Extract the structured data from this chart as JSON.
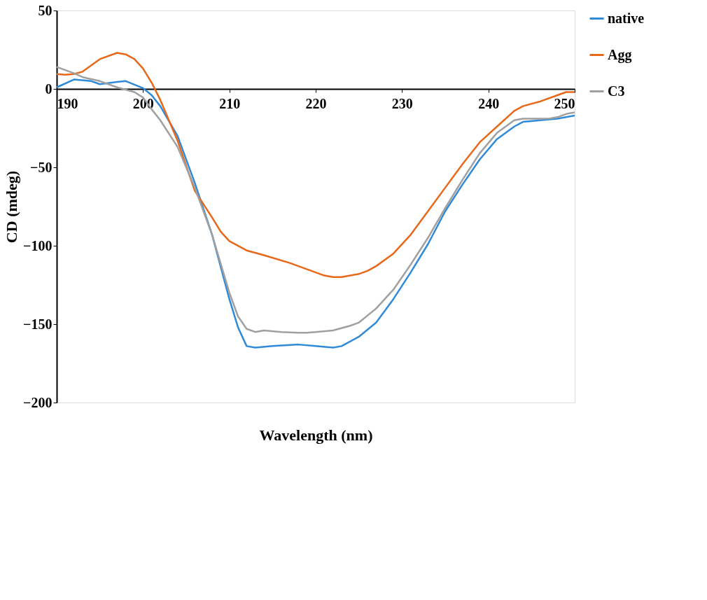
{
  "chart_data": {
    "type": "line",
    "xlabel": "Wavelength (nm)",
    "ylabel": "CD (mdeg)",
    "xlim": [
      190,
      250
    ],
    "xticks": [
      190,
      200,
      210,
      220,
      230,
      240,
      250
    ],
    "ylim": [
      -200,
      50
    ],
    "yticks": [
      -200,
      -150,
      -100,
      -50,
      0,
      50
    ],
    "grid": false,
    "legend": "right",
    "line_style": "solid",
    "marker": "none",
    "series": [
      {
        "name": "native",
        "color": "#2f8ad8",
        "x": [
          190,
          192,
          194,
          195,
          197,
          198,
          200,
          201,
          202,
          204,
          206,
          208,
          210,
          211,
          212,
          213,
          215,
          218,
          220,
          222,
          223,
          225,
          227,
          229,
          231,
          233,
          235,
          237,
          239,
          241,
          243,
          244,
          246,
          248,
          250
        ],
        "values": [
          1,
          6,
          5,
          3,
          4.5,
          5,
          0.5,
          -4,
          -11,
          -30,
          -60,
          -93,
          -134,
          -152,
          -164,
          -165,
          -164,
          -163,
          -164,
          -165,
          -164,
          -158,
          -149,
          -134,
          -117,
          -99,
          -78,
          -61,
          -45,
          -32,
          -24,
          -21,
          -20,
          -19,
          -17
        ]
      },
      {
        "name": "Agg",
        "color": "#e8681a",
        "x": [
          190,
          191,
          192,
          193,
          195,
          197,
          198,
          199,
          200,
          201,
          202,
          204,
          206,
          208,
          209,
          210,
          212,
          214,
          217,
          219,
          221,
          222,
          223,
          225,
          226,
          227,
          229,
          231,
          233,
          235,
          237,
          239,
          241,
          243,
          244,
          246,
          248,
          249,
          250
        ],
        "values": [
          9.5,
          9,
          9.5,
          11,
          19,
          23,
          22,
          19,
          13,
          4,
          -7,
          -33,
          -65,
          -82,
          -91,
          -97,
          -103,
          -106,
          -111,
          -115,
          -119,
          -120,
          -120,
          -118,
          -116,
          -113,
          -105,
          -93,
          -78,
          -63,
          -48,
          -34,
          -24,
          -14,
          -11,
          -8,
          -4,
          -2,
          -2
        ]
      },
      {
        "name": "C3",
        "color": "#a0a0a0",
        "x": [
          190,
          192,
          193,
          195,
          197,
          199,
          200,
          201,
          202,
          204,
          206,
          208,
          210,
          211,
          212,
          213,
          214,
          216,
          218,
          219,
          220,
          222,
          224,
          225,
          227,
          229,
          231,
          233,
          235,
          237,
          239,
          241,
          243,
          244,
          246,
          247,
          248,
          249,
          250
        ],
        "values": [
          14,
          10,
          7.5,
          5,
          1,
          -2,
          -5.5,
          -13,
          -20,
          -37,
          -63,
          -93,
          -130,
          -145,
          -153,
          -155,
          -154,
          -155,
          -155.5,
          -155.5,
          -155,
          -154,
          -151,
          -149,
          -140,
          -128,
          -112,
          -95,
          -76,
          -58,
          -41,
          -28,
          -20,
          -19,
          -19,
          -19,
          -18,
          -16,
          -15
        ]
      }
    ]
  }
}
